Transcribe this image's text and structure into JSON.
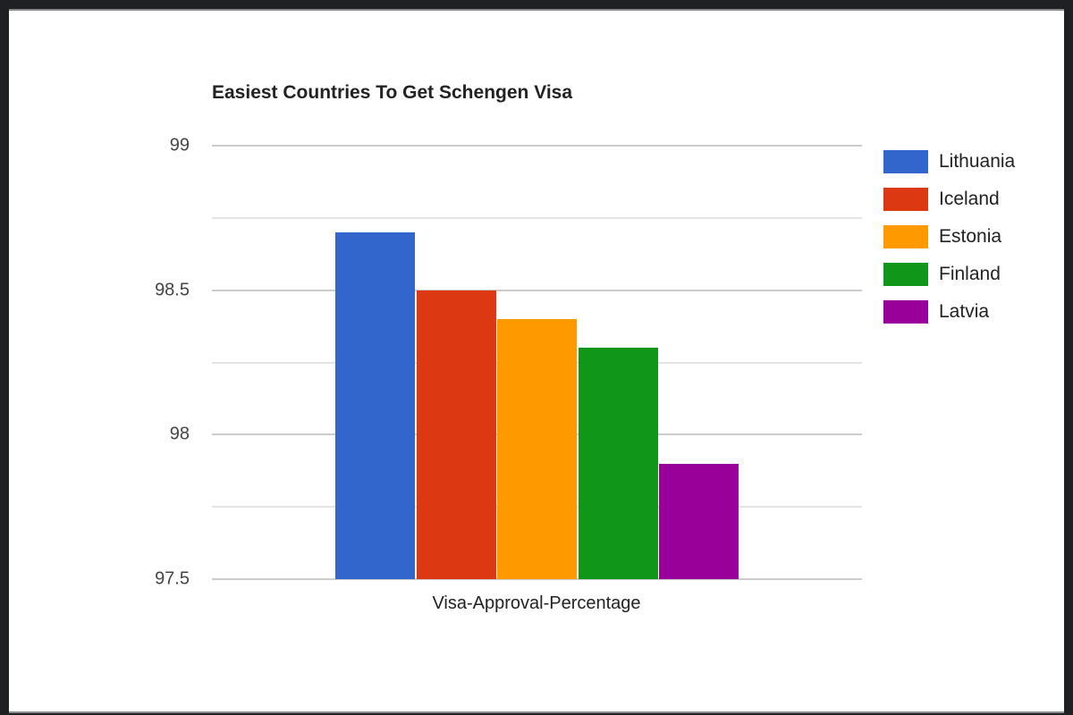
{
  "chart_data": {
    "type": "bar",
    "title": "Easiest Countries To Get Schengen Visa",
    "categories": [
      "Visa-Approval-Percentage"
    ],
    "xlabel": "Visa-Approval-Percentage",
    "ylabel": "",
    "ylim": [
      97.5,
      99
    ],
    "yticks": [
      "99",
      "98.5",
      "98",
      "97.5"
    ],
    "grid": true,
    "legend_position": "right",
    "series": [
      {
        "name": "Lithuania",
        "values": [
          98.7
        ],
        "color": "#3366cc"
      },
      {
        "name": "Iceland",
        "values": [
          98.5
        ],
        "color": "#dc3912"
      },
      {
        "name": "Estonia",
        "values": [
          98.4
        ],
        "color": "#ff9900"
      },
      {
        "name": "Finland",
        "values": [
          98.3
        ],
        "color": "#109618"
      },
      {
        "name": "Latvia",
        "values": [
          97.9
        ],
        "color": "#990099"
      }
    ]
  }
}
